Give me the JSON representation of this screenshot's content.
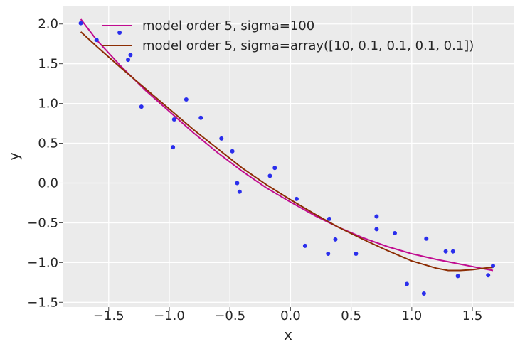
{
  "chart_data": {
    "type": "scatter",
    "title": "",
    "xlabel": "x",
    "ylabel": "y",
    "xlim": [
      -1.88,
      1.84
    ],
    "ylim": [
      -1.56,
      2.23
    ],
    "xticks": [
      -1.5,
      -1.0,
      -0.5,
      0.0,
      0.5,
      1.0,
      1.5
    ],
    "xtick_labels": [
      "−1.5",
      "−1.0",
      "−0.5",
      "0.0",
      "0.5",
      "1.0",
      "1.5"
    ],
    "yticks": [
      -1.5,
      -1.0,
      -0.5,
      0.0,
      0.5,
      1.0,
      1.5,
      2.0
    ],
    "ytick_labels": [
      "−1.5",
      "−1.0",
      "−0.5",
      "0.0",
      "0.5",
      "1.0",
      "1.5",
      "2.0"
    ],
    "grid": true,
    "legend_placement": "top-left",
    "background_color": "#ebebeb",
    "points": {
      "color": "#2a2eec",
      "x": [
        -1.73,
        -1.6,
        -1.41,
        -1.34,
        -1.32,
        -1.23,
        -0.97,
        -0.96,
        -0.86,
        -0.74,
        -0.57,
        -0.48,
        -0.44,
        -0.42,
        -0.17,
        -0.13,
        0.05,
        0.12,
        0.31,
        0.32,
        0.37,
        0.54,
        0.71,
        0.71,
        0.86,
        0.96,
        1.1,
        1.12,
        1.28,
        1.34,
        1.38,
        1.63,
        1.67
      ],
      "y": [
        2.01,
        1.8,
        1.89,
        1.55,
        1.61,
        0.96,
        0.45,
        0.8,
        1.05,
        0.82,
        0.56,
        0.4,
        0.0,
        -0.11,
        0.09,
        0.19,
        -0.2,
        -0.79,
        -0.89,
        -0.45,
        -0.71,
        -0.89,
        -0.42,
        -0.58,
        -0.63,
        -1.27,
        -1.39,
        -0.7,
        -0.86,
        -0.86,
        -1.17,
        -1.16,
        -1.04
      ]
    },
    "series": [
      {
        "name": "model order 5, sigma=100",
        "color": "#c10c90",
        "x": [
          -1.73,
          -1.6,
          -1.4,
          -1.2,
          -1.0,
          -0.8,
          -0.6,
          -0.4,
          -0.2,
          0.0,
          0.2,
          0.4,
          0.6,
          0.8,
          1.0,
          1.2,
          1.4,
          1.6,
          1.67
        ],
        "y": [
          2.06,
          1.8,
          1.47,
          1.17,
          0.9,
          0.63,
          0.38,
          0.15,
          -0.06,
          -0.24,
          -0.41,
          -0.56,
          -0.69,
          -0.8,
          -0.89,
          -0.96,
          -1.02,
          -1.08,
          -1.1
        ]
      },
      {
        "name": "model order 5, sigma=array([10, 0.1, 0.1, 0.1, 0.1])",
        "color": "#8c2d04",
        "x": [
          -1.73,
          -1.6,
          -1.4,
          -1.2,
          -1.0,
          -0.8,
          -0.6,
          -0.4,
          -0.2,
          0.0,
          0.2,
          0.4,
          0.6,
          0.8,
          1.0,
          1.2,
          1.3,
          1.4,
          1.5,
          1.6,
          1.67
        ],
        "y": [
          1.9,
          1.72,
          1.45,
          1.19,
          0.93,
          0.67,
          0.43,
          0.19,
          -0.02,
          -0.21,
          -0.39,
          -0.56,
          -0.71,
          -0.85,
          -0.98,
          -1.07,
          -1.1,
          -1.1,
          -1.09,
          -1.07,
          -1.06
        ]
      }
    ]
  }
}
